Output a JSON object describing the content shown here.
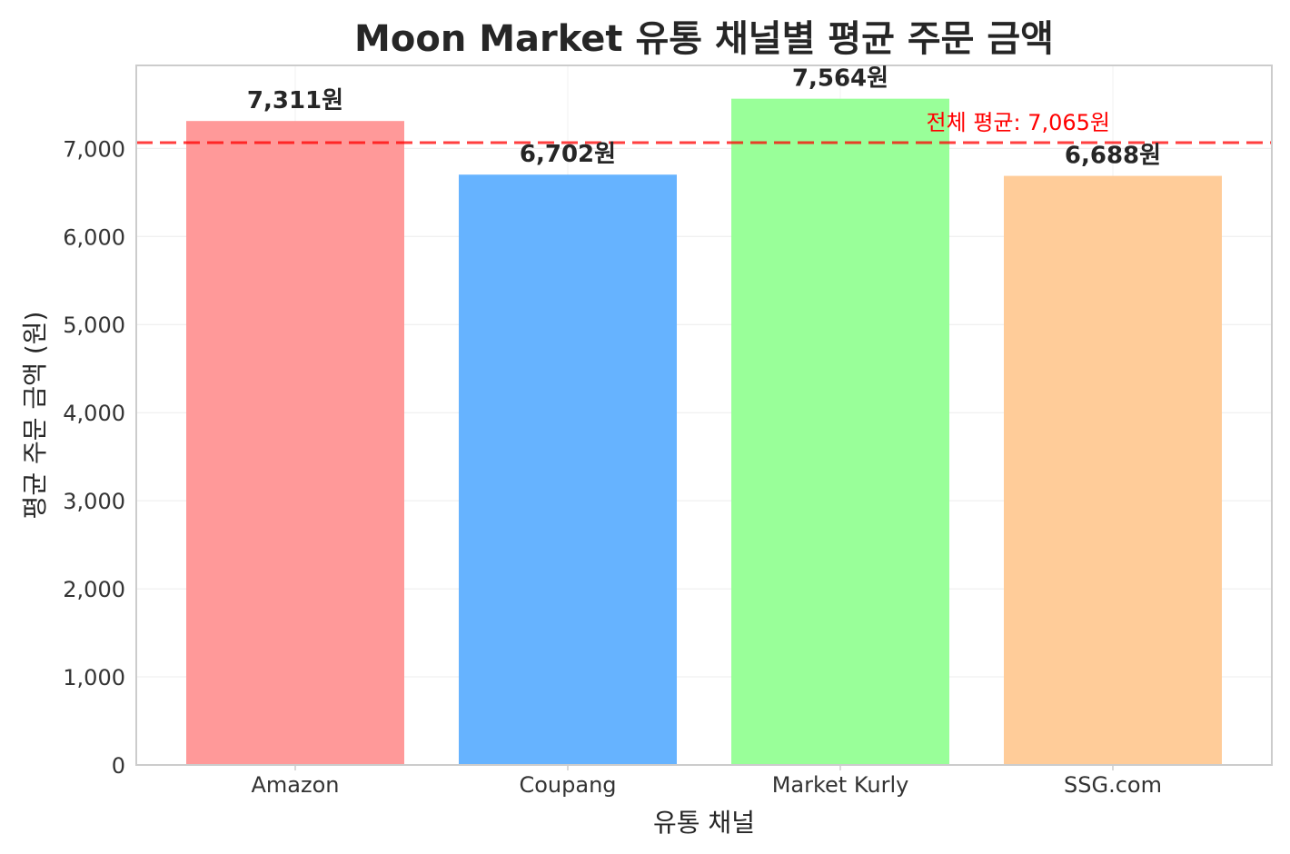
{
  "chart_data": {
    "type": "bar",
    "title": "Moon Market 유통 채널별 평균 주문 금액",
    "xlabel": "유통 채널",
    "ylabel": "평균 주문 금액 (원)",
    "categories": [
      "Amazon",
      "Coupang",
      "Market Kurly",
      "SSG.com"
    ],
    "values": [
      7311,
      6702,
      7564,
      6688
    ],
    "data_labels": [
      "7,311원",
      "6,702원",
      "7,564원",
      "6,688원"
    ],
    "colors": [
      "#ff9999",
      "#66b3ff",
      "#99ff99",
      "#ffcc99"
    ],
    "ylim": [
      0,
      7942
    ],
    "yticks": [
      0,
      1000,
      2000,
      3000,
      4000,
      5000,
      6000,
      7000
    ],
    "ytick_labels": [
      "0",
      "1,000",
      "2,000",
      "3,000",
      "4,000",
      "5,000",
      "6,000",
      "7,000"
    ],
    "grid": true,
    "reference_line": {
      "value": 7065,
      "label": "전체 평균: 7,065원",
      "color": "#ff0000",
      "style": "dashed"
    }
  }
}
